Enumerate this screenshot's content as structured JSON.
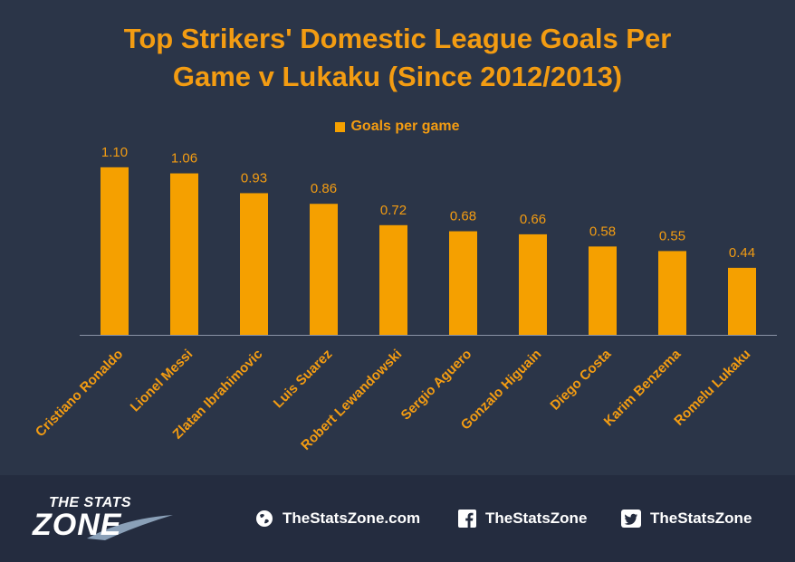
{
  "chart_data": {
    "type": "bar",
    "title": "Top Strikers' Domestic League Goals Per\nGame v Lukaku (Since 2012/2013)",
    "series": [
      {
        "name": "Goals per game",
        "values": [
          1.1,
          1.06,
          0.93,
          0.86,
          0.72,
          0.68,
          0.66,
          0.58,
          0.55,
          0.44
        ],
        "labels": [
          "1.10",
          "1.06",
          "0.93",
          "0.86",
          "0.72",
          "0.68",
          "0.66",
          "0.58",
          "0.55",
          "0.44"
        ]
      }
    ],
    "categories": [
      "Cristiano Ronaldo",
      "Lionel Messi",
      "Zlatan Ibrahimovic",
      "Luis Suarez",
      "Robert Lewandowski",
      "Sergio Aguero",
      "Gonzalo Higuain",
      "Diego Costa",
      "Karim Benzema",
      "Romelu Lukaku"
    ],
    "xlabel": "",
    "ylabel": "",
    "ylim": [
      0,
      1.2
    ],
    "grid": false,
    "legend": "top-center",
    "colors": {
      "bar": "#f5a000",
      "text": "#f39c12",
      "background": "#2b3548"
    }
  },
  "footer": {
    "logo_top": "THE STATS",
    "logo_main": "ZONE",
    "website": "TheStatsZone.com",
    "facebook": "TheStatsZone",
    "twitter": "TheStatsZone",
    "icons": [
      "globe-icon",
      "facebook-icon",
      "twitter-icon"
    ]
  }
}
